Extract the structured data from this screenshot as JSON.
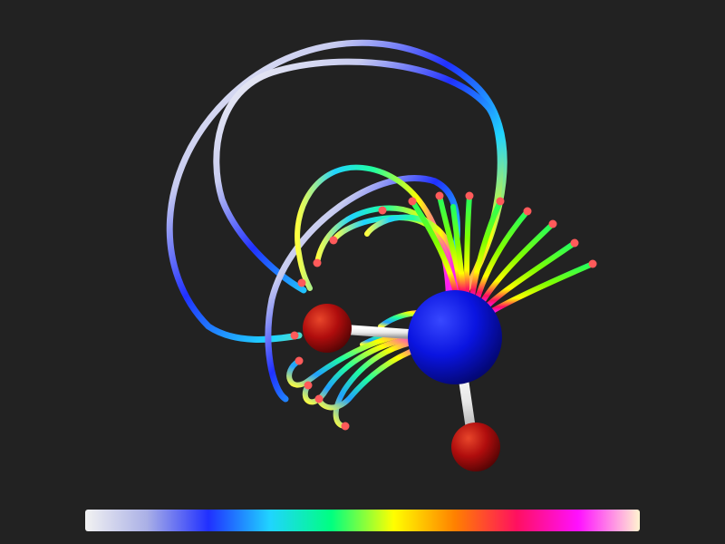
{
  "scene": {
    "background": "#222222",
    "atom_colors": {
      "central_atom": "#0a14e0",
      "outer_atom": "#b00d0d",
      "bond": "#ffffff",
      "field_line_endpoint": "#ff5a5a"
    },
    "atoms": [
      {
        "name": "central-atom",
        "color": "#0a14e0"
      },
      {
        "name": "outer-atom-left",
        "color": "#b00d0d"
      },
      {
        "name": "outer-atom-bottom",
        "color": "#b00d0d"
      }
    ],
    "field_line_count": 28
  },
  "colorbar": {
    "stops": [
      "#f2f2f2",
      "#aab0e6",
      "#2030ff",
      "#20d4ff",
      "#00ff80",
      "#ffff00",
      "#ff8000",
      "#ff1060",
      "#ff10ff",
      "#fff4d0"
    ]
  }
}
